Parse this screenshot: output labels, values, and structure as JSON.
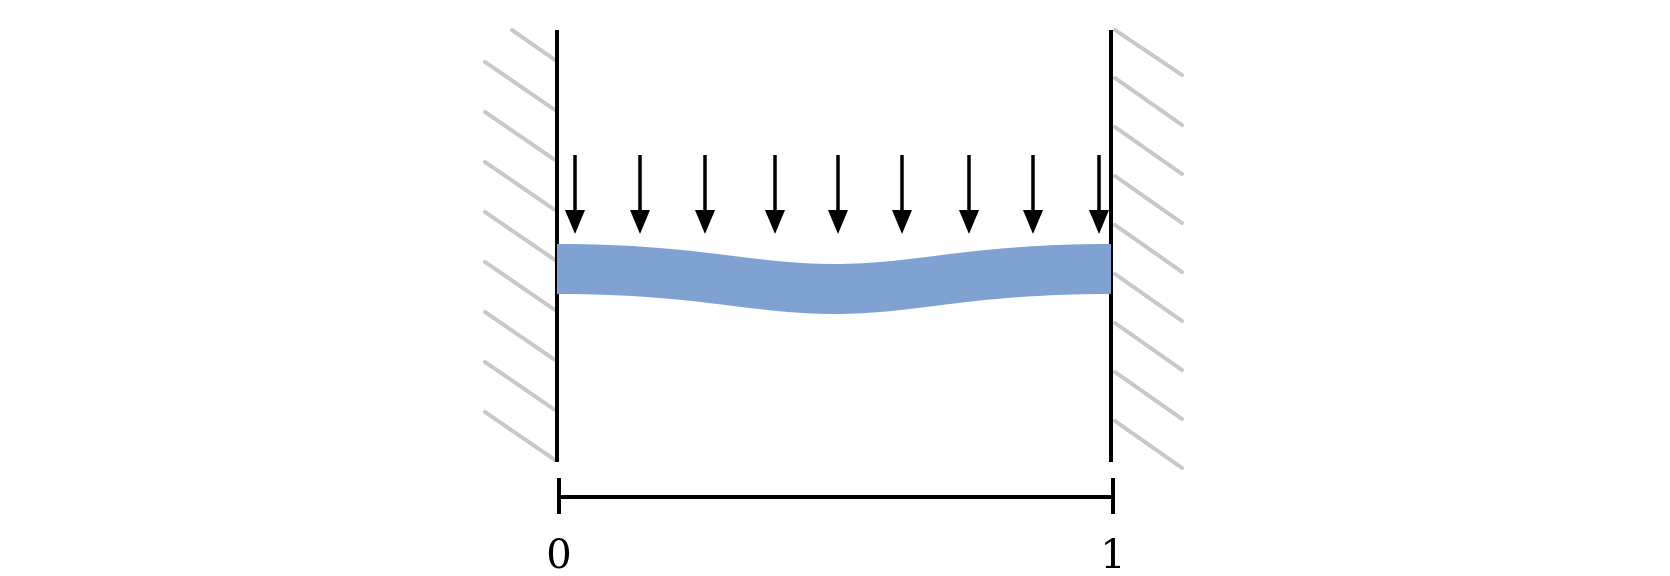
{
  "diagram": {
    "colors": {
      "beam": "#7fa2d3",
      "hatch": "#c8c8c8",
      "lines": "#000000"
    },
    "load_arrow_count": 9,
    "dimension": {
      "left_label": "0",
      "right_label": "1"
    }
  }
}
